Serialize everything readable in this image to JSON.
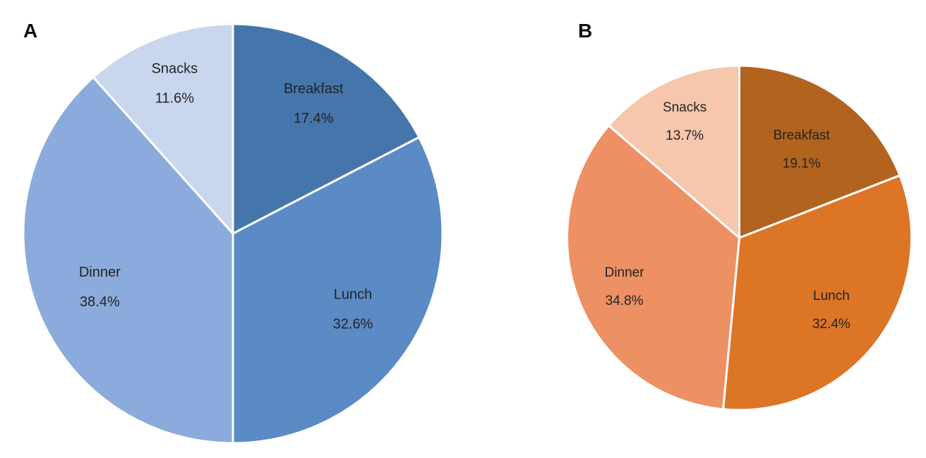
{
  "figure": {
    "background_color": "#ffffff",
    "text_color": "#232323",
    "panel_a_label": "A",
    "panel_b_label": "B"
  },
  "chart_data": [
    {
      "type": "pie",
      "panel_label": "A",
      "title": "",
      "direction": "clockwise",
      "start_angle_deg": 0,
      "legend": "none",
      "labels_inside": true,
      "categories": [
        "Breakfast",
        "Lunch",
        "Dinner",
        "Snacks"
      ],
      "values": [
        17.4,
        32.6,
        38.4,
        11.6
      ],
      "value_labels": [
        "17.4%",
        "32.6%",
        "38.4%",
        "11.6%"
      ],
      "colors": [
        "#4576ab",
        "#5b8bc5",
        "#8babdc",
        "#c9d7ee"
      ],
      "slice_border_color": "#ffffff",
      "label_color": "#232323",
      "label_radius_fractions": [
        0.74,
        0.67,
        0.68,
        0.78
      ]
    },
    {
      "type": "pie",
      "panel_label": "B",
      "title": "",
      "direction": "clockwise",
      "start_angle_deg": 0,
      "legend": "none",
      "labels_inside": true,
      "categories": [
        "Breakfast",
        "Lunch",
        "Dinner",
        "Snacks"
      ],
      "values": [
        19.1,
        32.4,
        34.8,
        13.7
      ],
      "value_labels": [
        "19.1%",
        "32.4%",
        "34.8%",
        "13.7%"
      ],
      "colors": [
        "#b2641e",
        "#dd7527",
        "#ed9064",
        "#f6c7ad"
      ],
      "slice_border_color": "#ffffff",
      "label_color": "#232323",
      "label_radius_fractions": [
        0.64,
        0.67,
        0.72,
        0.76
      ]
    }
  ]
}
